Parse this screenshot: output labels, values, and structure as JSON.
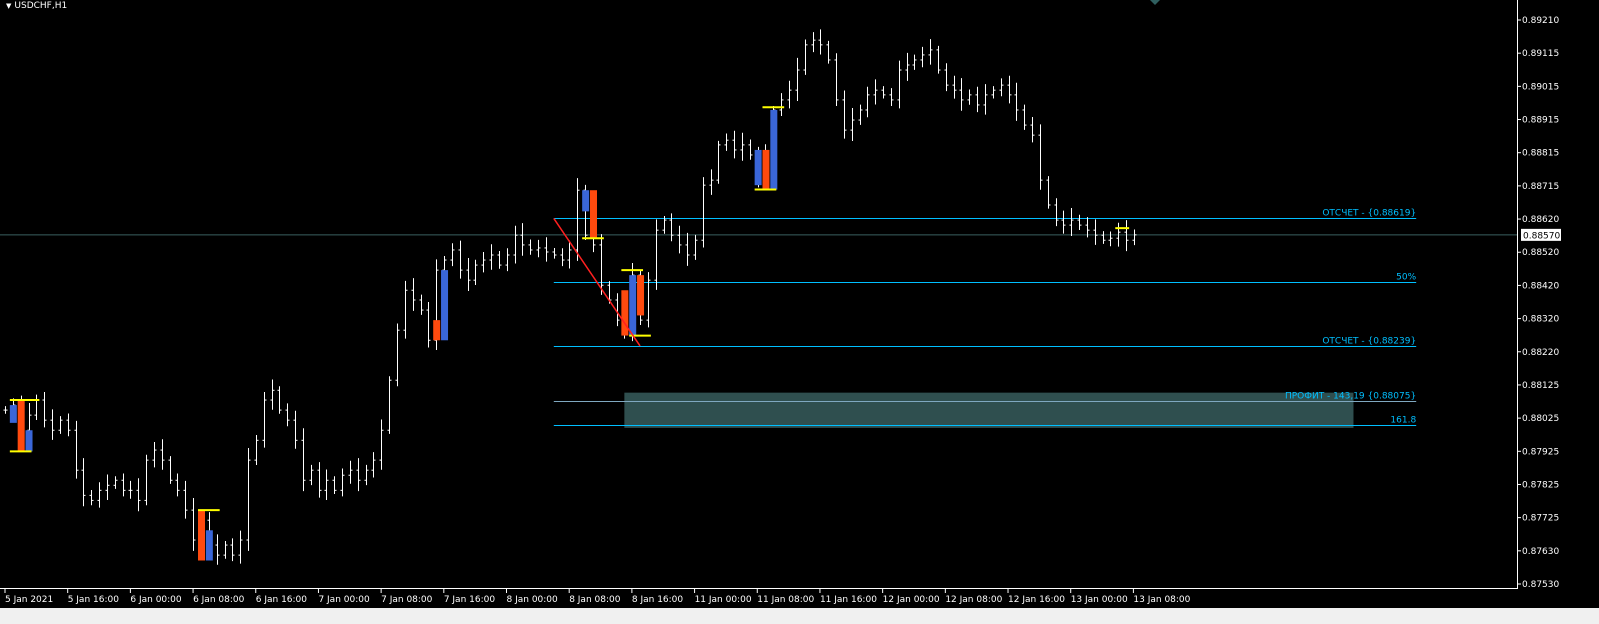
{
  "window": {
    "symbol_title": "USDCHF,H1"
  },
  "colors": {
    "background": "#000000",
    "bar": "#ffffff",
    "fib": "#00bfff",
    "bull_body": "#3a66d8",
    "bear_body": "#ff4a0e",
    "marker": "#ffff00",
    "trend": "#ff2020",
    "profit_zone": "#2f4f4f",
    "bid_line": "#3a5f5f"
  },
  "chart_data": {
    "type": "ohlc",
    "symbol": "USDCHF",
    "timeframe": "H1",
    "ylim": [
      0.8753,
      0.8921
    ],
    "y_ticks": [
      "0.89210",
      "0.89115",
      "0.89015",
      "0.88915",
      "0.88815",
      "0.88715",
      "0.88620",
      "0.88520",
      "0.88420",
      "0.88320",
      "0.88220",
      "0.88125",
      "0.88025",
      "0.87925",
      "0.87825",
      "0.87725",
      "0.87630",
      "0.87530"
    ],
    "x_ticks": [
      "5 Jan 2021",
      "5 Jan 16:00",
      "6 Jan 00:00",
      "6 Jan 08:00",
      "6 Jan 16:00",
      "7 Jan 00:00",
      "7 Jan 08:00",
      "7 Jan 16:00",
      "8 Jan 00:00",
      "8 Jan 08:00",
      "8 Jan 16:00",
      "11 Jan 00:00",
      "11 Jan 08:00",
      "11 Jan 16:00",
      "12 Jan 00:00",
      "12 Jan 08:00",
      "12 Jan 16:00",
      "13 Jan 00:00",
      "13 Jan 08:00"
    ],
    "bars_per_x_tick": 8,
    "close": [
      0.88048,
      0.88063,
      0.87988,
      0.88033,
      0.88078,
      0.88018,
      0.87988,
      0.88018,
      0.87988,
      0.87869,
      0.87794,
      0.87779,
      0.87809,
      0.87824,
      0.87839,
      0.87809,
      0.87809,
      0.87779,
      0.87899,
      0.87929,
      0.87899,
      0.87839,
      0.87809,
      0.8775,
      0.87661,
      0.8772,
      0.87646,
      0.87616,
      0.87646,
      0.87616,
      0.87661,
      0.87899,
      0.87958,
      0.88078,
      0.88107,
      0.88048,
      0.88018,
      0.87958,
      0.87839,
      0.87869,
      0.87809,
      0.87839,
      0.87809,
      0.87854,
      0.87869,
      0.87839,
      0.87869,
      0.87899,
      0.87988,
      0.88137,
      0.88286,
      0.88405,
      0.88376,
      0.88346,
      0.88256,
      0.88465,
      0.88495,
      0.88525,
      0.88465,
      0.88435,
      0.8848,
      0.88495,
      0.8851,
      0.8848,
      0.8851,
      0.88569,
      0.8854,
      0.88525,
      0.88531,
      0.88519,
      0.8851,
      0.88495,
      0.88525,
      0.88703,
      0.88569,
      0.8854,
      0.8842,
      0.88376,
      0.88316,
      0.88286,
      0.8845,
      0.88316,
      0.88435,
      0.88584,
      0.88614,
      0.88569,
      0.8854,
      0.8851,
      0.88554,
      0.88718,
      0.88733,
      0.88838,
      0.88852,
      0.88823,
      0.88838,
      0.88808,
      0.88733,
      0.88808,
      0.88942,
      0.88972,
      0.89001,
      0.89061,
      0.89136,
      0.8915,
      0.89136,
      0.89091,
      0.88972,
      0.88882,
      0.88912,
      0.88942,
      0.88987,
      0.89001,
      0.88987,
      0.88972,
      0.89061,
      0.89076,
      0.89091,
      0.89106,
      0.89121,
      0.89061,
      0.89016,
      0.89001,
      0.88972,
      0.88987,
      0.88957,
      0.88987,
      0.89001,
      0.89016,
      0.88987,
      0.88942,
      0.88897,
      0.88867,
      0.88733,
      0.88659,
      0.88614,
      0.88599,
      0.88614,
      0.88599,
      0.88584,
      0.88569,
      0.88554,
      0.8856,
      0.88578,
      0.88554,
      0.8857
    ],
    "highlight_bodies": [
      {
        "bar": 1,
        "top": 0.88063,
        "bottom": 0.8801,
        "kind": "bull"
      },
      {
        "bar": 2,
        "top": 0.88078,
        "bottom": 0.87925,
        "kind": "bear"
      },
      {
        "bar": 3,
        "top": 0.87988,
        "bottom": 0.87925,
        "kind": "bull"
      },
      {
        "bar": 25,
        "top": 0.8775,
        "bottom": 0.876,
        "kind": "bear"
      },
      {
        "bar": 26,
        "top": 0.8769,
        "bottom": 0.876,
        "kind": "bull"
      },
      {
        "bar": 55,
        "top": 0.88316,
        "bottom": 0.88256,
        "kind": "bear"
      },
      {
        "bar": 56,
        "top": 0.88465,
        "bottom": 0.88256,
        "kind": "bull"
      },
      {
        "bar": 74,
        "top": 0.88703,
        "bottom": 0.8864,
        "kind": "bull"
      },
      {
        "bar": 75,
        "top": 0.88703,
        "bottom": 0.8856,
        "kind": "bear"
      },
      {
        "bar": 79,
        "top": 0.88405,
        "bottom": 0.8827,
        "kind": "bear"
      },
      {
        "bar": 80,
        "top": 0.8845,
        "bottom": 0.8827,
        "kind": "bull"
      },
      {
        "bar": 81,
        "top": 0.8845,
        "bottom": 0.8833,
        "kind": "bear"
      },
      {
        "bar": 96,
        "top": 0.88823,
        "bottom": 0.88718,
        "kind": "bull"
      },
      {
        "bar": 97,
        "top": 0.88823,
        "bottom": 0.88705,
        "kind": "bear"
      },
      {
        "bar": 98,
        "top": 0.88942,
        "bottom": 0.88705,
        "kind": "bull"
      }
    ],
    "markers": [
      {
        "from_bar": 1,
        "to_bar": 4,
        "price": 0.88078
      },
      {
        "from_bar": 1,
        "to_bar": 3,
        "price": 0.87925
      },
      {
        "from_bar": 25,
        "to_bar": 27,
        "price": 0.8775
      },
      {
        "from_bar": 74,
        "to_bar": 76,
        "price": 0.8856
      },
      {
        "from_bar": 79,
        "to_bar": 81,
        "price": 0.88465
      },
      {
        "from_bar": 80,
        "to_bar": 82,
        "price": 0.8827
      },
      {
        "from_bar": 96,
        "to_bar": 98,
        "price": 0.88705
      },
      {
        "from_bar": 97,
        "to_bar": 99,
        "price": 0.8895
      },
      {
        "from_bar": 142,
        "to_bar": 143,
        "price": 0.8859
      }
    ],
    "trend_line": {
      "from_bar": 70,
      "from_price": 0.88619,
      "to_bar": 81,
      "to_price": 0.88239
    },
    "fib_levels": [
      {
        "label": "ОТСЧЕТ - {0.88619}",
        "price": 0.88619
      },
      {
        "label": "50%",
        "price": 0.88429
      },
      {
        "label": "ОТСЧЕТ - {0.88239}",
        "price": 0.88239
      },
      {
        "label": "ПРОФИТ - 143,19 {0.88075}",
        "price": 0.88075
      },
      {
        "label": "161.8",
        "price": 0.88004
      }
    ],
    "fib_from_bar": 70,
    "fib_to_bar": 180,
    "profit_zone": {
      "from_bar": 79,
      "to_bar": 172,
      "top": 0.881,
      "bottom": 0.87995
    },
    "current_price": "0.88570"
  }
}
